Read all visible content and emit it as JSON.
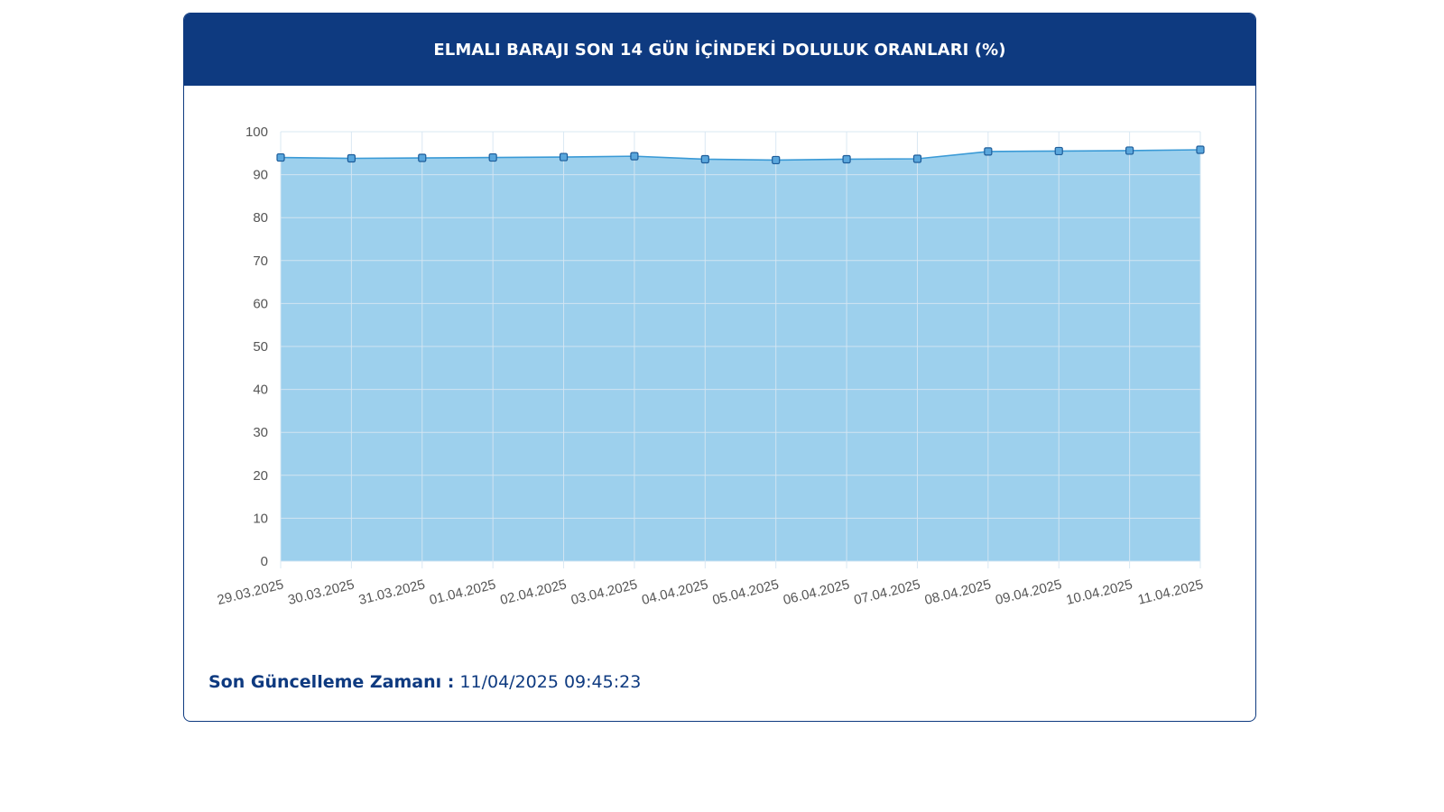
{
  "header": {
    "title": "ELMALI BARAJI SON 14 GÜN İÇİNDEKİ DOLULUK ORANLARI (%)"
  },
  "footer": {
    "label": "Son Güncelleme Zamanı :",
    "value": "11/04/2025 09:45:23"
  },
  "colors": {
    "header_bg": "#0e3a80",
    "area_fill": "#9dd0ed",
    "line": "#3a9ad6",
    "marker_fill": "#5aa7dd",
    "marker_stroke": "#1d5c99",
    "grid": "#d6e6f2"
  },
  "chart_data": {
    "type": "area",
    "title": "ELMALI BARAJI SON 14 GÜN İÇİNDEKİ DOLULUK ORANLARI (%)",
    "xlabel": "",
    "ylabel": "",
    "ylim": [
      0,
      100
    ],
    "yticks": [
      0,
      10,
      20,
      30,
      40,
      50,
      60,
      70,
      80,
      90,
      100
    ],
    "grid": true,
    "legend": "none",
    "categories": [
      "29.03.2025",
      "30.03.2025",
      "31.03.2025",
      "01.04.2025",
      "02.04.2025",
      "03.04.2025",
      "04.04.2025",
      "05.04.2025",
      "06.04.2025",
      "07.04.2025",
      "08.04.2025",
      "09.04.2025",
      "10.04.2025",
      "11.04.2025"
    ],
    "series": [
      {
        "values": [
          94.0,
          93.8,
          93.9,
          94.0,
          94.1,
          94.3,
          93.6,
          93.4,
          93.6,
          93.7,
          95.4,
          95.5,
          95.6,
          95.8
        ]
      }
    ]
  }
}
